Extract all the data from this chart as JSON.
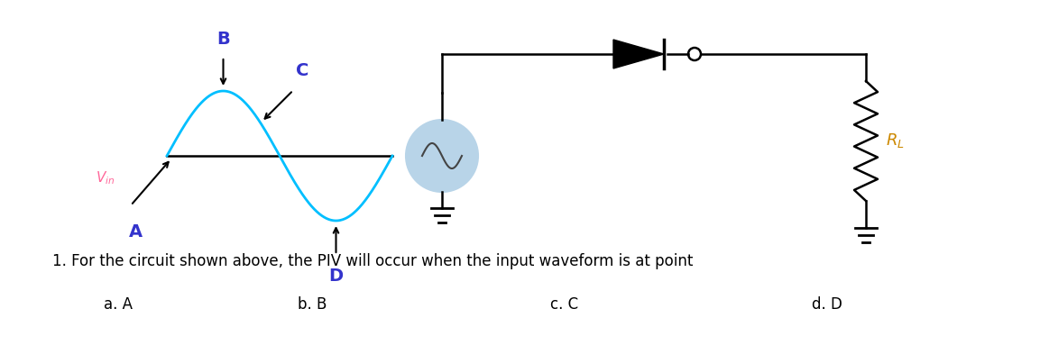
{
  "bg_color": "#ffffff",
  "waveform_color": "#00bfff",
  "label_color_blue": "#3333cc",
  "label_color_pink": "#ff6699",
  "label_color_orange": "#cc8800",
  "circuit_color": "#000000",
  "source_fill": "#b8d4e8",
  "question_text": "1. For the circuit shown above, the PIV will occur when the input waveform is at point",
  "answers": [
    "a. A",
    "b. B",
    "c. C",
    "d. D"
  ],
  "figsize": [
    11.53,
    3.83
  ],
  "dpi": 100
}
